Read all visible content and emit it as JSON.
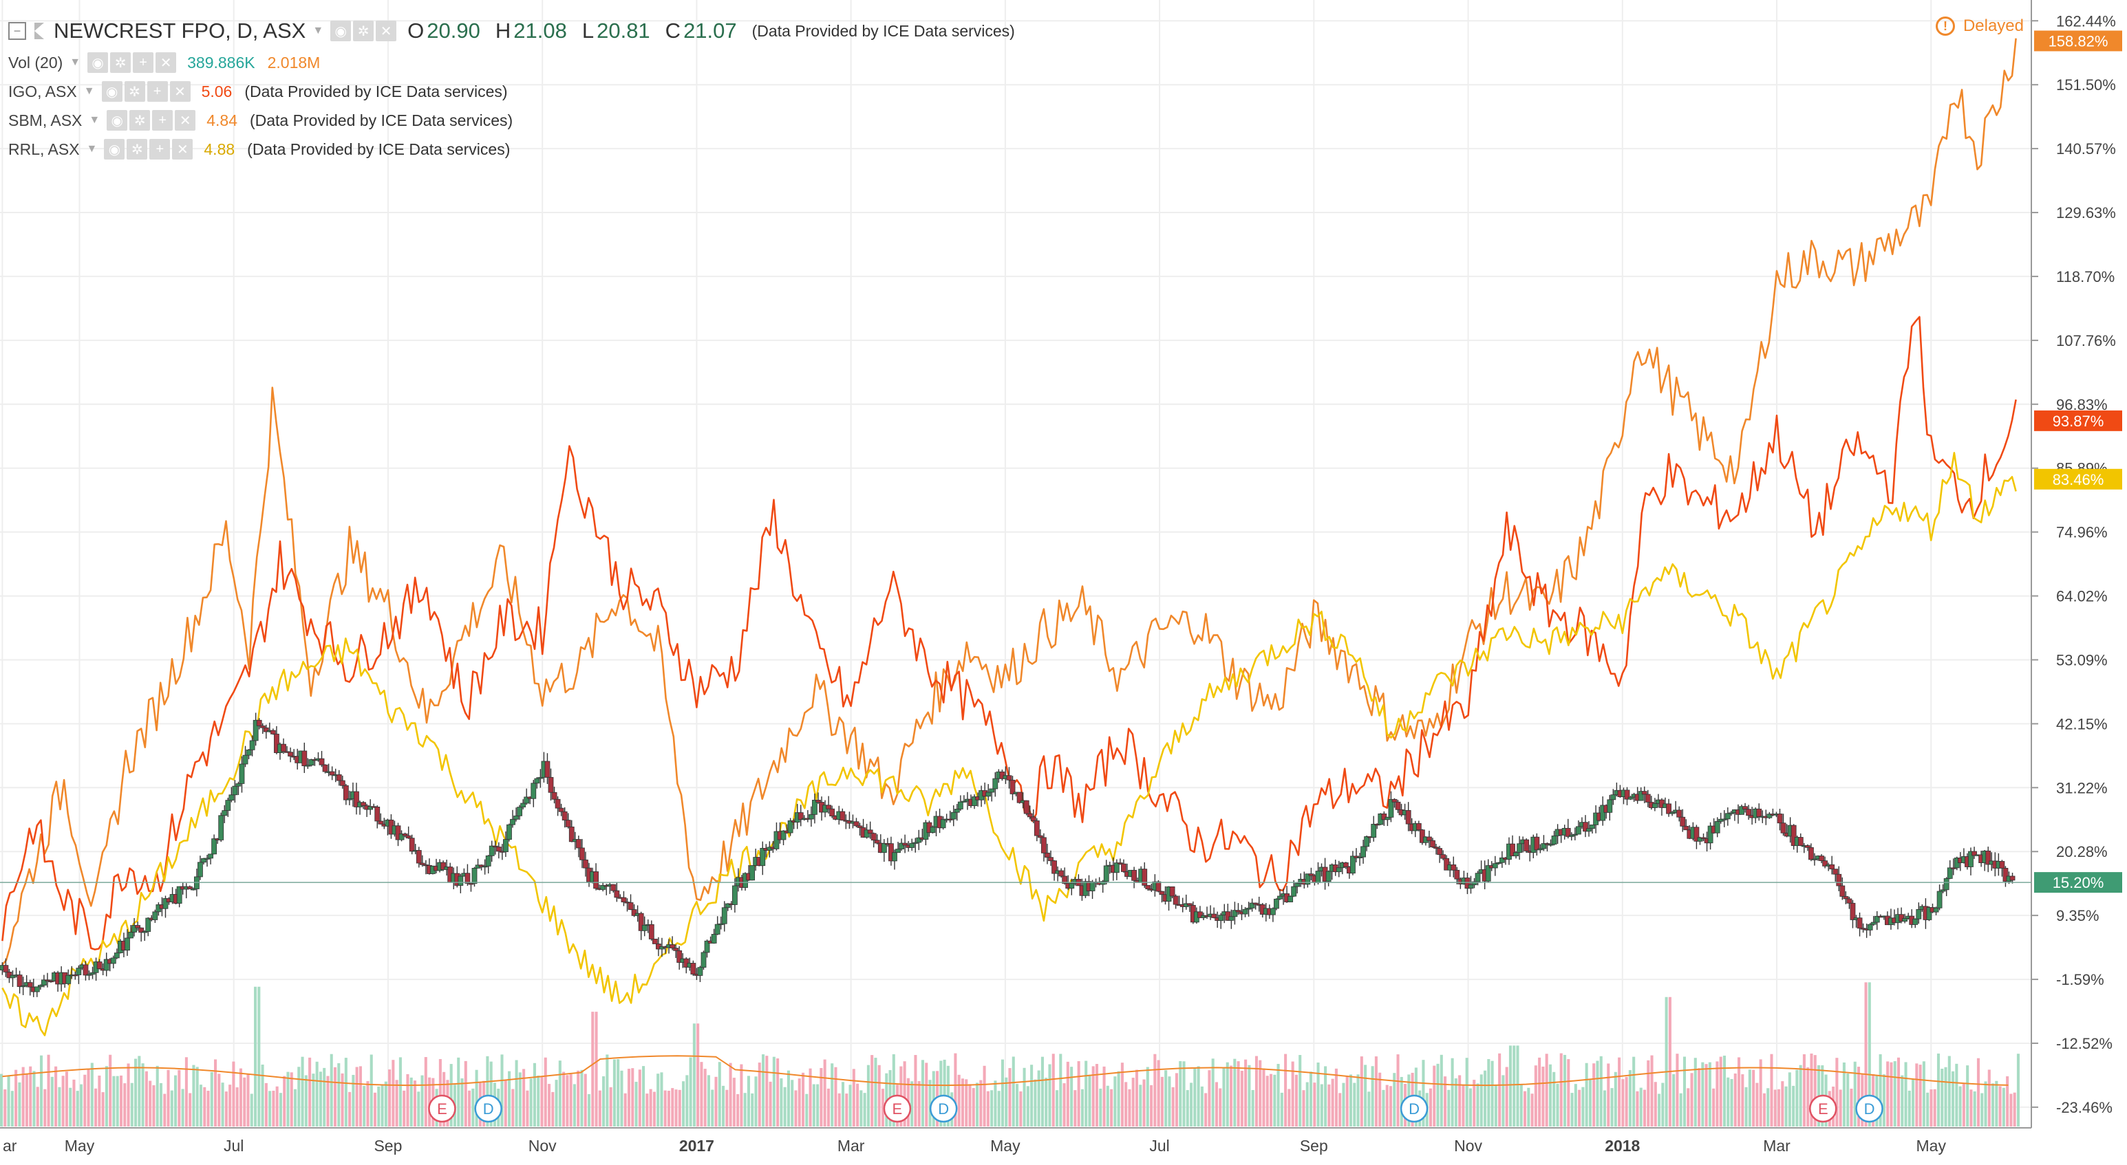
{
  "header": {
    "symbol": "NEWCREST FPO, D, ASX",
    "ohlc": [
      {
        "label": "O",
        "value": "20.90"
      },
      {
        "label": "H",
        "value": "21.08"
      },
      {
        "label": "L",
        "value": "20.81"
      },
      {
        "label": "C",
        "value": "21.07"
      }
    ],
    "provider": "(Data Provided by ICE Data services)",
    "delayed_label": "Delayed",
    "delayed_icon": "warning-circle-icon"
  },
  "studies": [
    {
      "name": "Vol (20)",
      "values": [
        "389.886K",
        "2.018M"
      ],
      "colors": [
        "#26a69a",
        "#f0882b"
      ],
      "provider": ""
    },
    {
      "name": "IGO, ASX",
      "values": [
        "5.06"
      ],
      "colors": [
        "#f04a14"
      ],
      "provider": "(Data Provided by ICE Data services)"
    },
    {
      "name": "SBM, ASX",
      "values": [
        "4.84"
      ],
      "colors": [
        "#f0882b"
      ],
      "provider": "(Data Provided by ICE Data services)"
    },
    {
      "name": "RRL, ASX",
      "values": [
        "4.88"
      ],
      "colors": [
        "#f2c500"
      ],
      "provider": "(Data Provided by ICE Data services)"
    }
  ],
  "chart_data": {
    "type": "line",
    "title": "NEWCREST FPO, D, ASX",
    "y_unit": "%",
    "ylim": [
      -27,
      166
    ],
    "y_ticks": [
      "162.44%",
      "151.50%",
      "140.57%",
      "129.63%",
      "118.70%",
      "107.76%",
      "96.83%",
      "85.89%",
      "74.96%",
      "64.02%",
      "53.09%",
      "42.15%",
      "31.22%",
      "20.28%",
      "9.35%",
      "-1.59%",
      "-12.52%",
      "-23.46%"
    ],
    "y_tick_values": [
      162.44,
      151.5,
      140.57,
      129.63,
      118.7,
      107.76,
      96.83,
      85.89,
      74.96,
      64.02,
      53.09,
      42.15,
      31.22,
      20.28,
      9.35,
      -1.59,
      -12.52,
      -23.46
    ],
    "x_ticks": [
      "ar",
      "May",
      "Jul",
      "Sep",
      "Nov",
      "2017",
      "Mar",
      "May",
      "Jul",
      "Sep",
      "Nov",
      "2018",
      "Mar",
      "May"
    ],
    "x_tick_months": [
      0,
      1,
      3,
      5,
      7,
      9,
      11,
      13,
      15,
      17,
      19,
      21,
      23,
      25
    ],
    "x_tick_bold": [
      false,
      false,
      false,
      false,
      false,
      true,
      false,
      false,
      false,
      false,
      false,
      true,
      false,
      false
    ],
    "x_range_months": [
      -0.03,
      26.3
    ],
    "grid": true,
    "legend_position": "top-left",
    "series": [
      {
        "name": "SBM, ASX",
        "color": "#f0882b",
        "last_label": "158.82%",
        "x": [
          0,
          0.4,
          0.8,
          1.2,
          1.6,
          2.0,
          2.5,
          2.9,
          3.2,
          3.5,
          4.0,
          4.5,
          5.0,
          5.5,
          6.0,
          6.5,
          7.0,
          7.5,
          8.0,
          8.5,
          9.0,
          9.5,
          10.0,
          10.5,
          11.0,
          11.5,
          12.0,
          12.5,
          13.0,
          13.5,
          14.0,
          14.5,
          15.0,
          15.5,
          16.0,
          16.5,
          17.0,
          17.5,
          18.0,
          18.5,
          19.0,
          19.5,
          20.0,
          20.5,
          20.9,
          21.2,
          21.6,
          22.0,
          22.5,
          23.0,
          23.5,
          24.0,
          24.5,
          25.0,
          25.3,
          25.6,
          25.9,
          26.1
        ],
        "y": [
          2,
          18,
          32,
          10,
          35,
          45,
          60,
          75,
          55,
          97,
          50,
          72,
          62,
          43,
          58,
          70,
          48,
          52,
          65,
          55,
          12,
          22,
          35,
          48,
          40,
          30,
          45,
          55,
          50,
          58,
          62,
          50,
          58,
          60,
          50,
          45,
          60,
          52,
          42,
          40,
          56,
          65,
          62,
          72,
          88,
          108,
          100,
          92,
          85,
          118,
          122,
          120,
          125,
          130,
          152,
          140,
          150,
          159
        ]
      },
      {
        "name": "IGO, ASX",
        "color": "#f04a14",
        "last_label": "93.87%",
        "x": [
          0,
          0.4,
          0.8,
          1.2,
          1.6,
          2.0,
          2.5,
          3.0,
          3.3,
          3.6,
          4.0,
          4.5,
          5.0,
          5.5,
          6.0,
          6.5,
          7.0,
          7.3,
          7.6,
          8.0,
          8.5,
          9.0,
          9.5,
          10.0,
          10.5,
          11.0,
          11.5,
          12.0,
          12.5,
          13.0,
          13.3,
          13.6,
          14.0,
          14.5,
          15.0,
          15.5,
          16.0,
          16.5,
          17.0,
          17.5,
          18.0,
          18.5,
          19.0,
          19.5,
          20.0,
          20.5,
          21.0,
          21.3,
          21.6,
          22.0,
          22.5,
          23.0,
          23.5,
          24.0,
          24.5,
          24.8,
          25.0,
          25.5,
          26.1
        ],
        "y": [
          8,
          25,
          12,
          5,
          18,
          15,
          35,
          45,
          55,
          70,
          60,
          52,
          58,
          66,
          45,
          60,
          58,
          88,
          80,
          66,
          62,
          48,
          52,
          78,
          56,
          45,
          66,
          52,
          46,
          38,
          28,
          35,
          28,
          40,
          30,
          22,
          22,
          15,
          28,
          32,
          30,
          40,
          45,
          75,
          62,
          58,
          50,
          80,
          85,
          80,
          78,
          92,
          75,
          90,
          83,
          115,
          88,
          80,
          94
        ]
      },
      {
        "name": "RRL, ASX",
        "color": "#f2c500",
        "last_label": "83.46%",
        "x": [
          0,
          0.5,
          1.0,
          1.5,
          2.0,
          2.5,
          3.0,
          3.5,
          4.0,
          4.5,
          5.0,
          5.5,
          6.0,
          6.5,
          7.0,
          7.5,
          8.0,
          8.5,
          9.0,
          9.5,
          10.0,
          10.5,
          11.0,
          11.5,
          12.0,
          12.5,
          13.0,
          13.5,
          14.0,
          14.5,
          15.0,
          15.5,
          16.0,
          16.5,
          17.0,
          17.5,
          18.0,
          18.5,
          19.0,
          19.5,
          20.0,
          20.5,
          21.0,
          21.5,
          22.0,
          22.5,
          23.0,
          23.5,
          24.0,
          24.5,
          25.0,
          25.3,
          25.6,
          26.1
        ],
        "y": [
          -5,
          -10,
          0,
          5,
          15,
          25,
          35,
          48,
          52,
          55,
          45,
          40,
          30,
          22,
          12,
          2,
          -5,
          0,
          10,
          18,
          22,
          30,
          35,
          32,
          28,
          35,
          22,
          10,
          18,
          22,
          35,
          45,
          50,
          55,
          60,
          55,
          40,
          48,
          52,
          58,
          56,
          58,
          60,
          68,
          65,
          60,
          50,
          60,
          70,
          80,
          76,
          88,
          78,
          84
        ]
      },
      {
        "name": "NEWCREST FPO, D, ASX",
        "color": "#555555",
        "last_label": "15.20%",
        "x": [
          0,
          0.4,
          0.8,
          1.2,
          1.6,
          2.0,
          2.5,
          3.0,
          3.3,
          3.6,
          4.0,
          4.5,
          5.0,
          5.5,
          6.0,
          6.5,
          7.0,
          7.3,
          7.6,
          8.0,
          8.5,
          9.0,
          9.5,
          10.0,
          10.5,
          11.0,
          11.5,
          12.0,
          12.5,
          13.0,
          13.4,
          13.7,
          14.0,
          14.5,
          15.0,
          15.5,
          16.0,
          16.5,
          17.0,
          17.5,
          18.0,
          18.5,
          19.0,
          19.5,
          20.0,
          20.5,
          21.0,
          21.5,
          22.0,
          22.5,
          23.0,
          23.4,
          23.7,
          24.0,
          24.5,
          25.0,
          25.3,
          25.6,
          26.1
        ],
        "y": [
          0,
          -3,
          -1,
          0,
          5,
          10,
          15,
          30,
          42,
          38,
          36,
          30,
          25,
          18,
          15,
          22,
          35,
          26,
          16,
          12,
          5,
          0,
          14,
          22,
          28,
          26,
          20,
          24,
          28,
          34,
          24,
          15,
          14,
          18,
          14,
          9,
          10,
          11,
          16,
          18,
          28,
          22,
          14,
          20,
          22,
          25,
          30,
          29,
          22,
          28,
          26,
          20,
          18,
          8,
          8,
          10,
          18,
          20,
          15
        ]
      }
    ],
    "volume": {
      "label": "Vol (20)",
      "up_color": "#a8dcc4",
      "down_color": "#f4a9b8",
      "ma_color": "#f0882b",
      "scale_max": 100,
      "spike_months": [
        3.3,
        7.7,
        9.0,
        19.6,
        21.6,
        24.2
      ],
      "spike_values": [
        95,
        78,
        70,
        55,
        88,
        98
      ]
    },
    "events": [
      {
        "type": "E",
        "month": 5.7,
        "color": "#e05263"
      },
      {
        "type": "D",
        "month": 6.3,
        "color": "#3a9bd6"
      },
      {
        "type": "E",
        "month": 11.6,
        "color": "#e05263"
      },
      {
        "type": "D",
        "month": 12.2,
        "color": "#3a9bd6"
      },
      {
        "type": "D",
        "month": 18.3,
        "color": "#3a9bd6"
      },
      {
        "type": "E",
        "month": 23.6,
        "color": "#e05263"
      },
      {
        "type": "D",
        "month": 24.2,
        "color": "#3a9bd6"
      }
    ]
  }
}
